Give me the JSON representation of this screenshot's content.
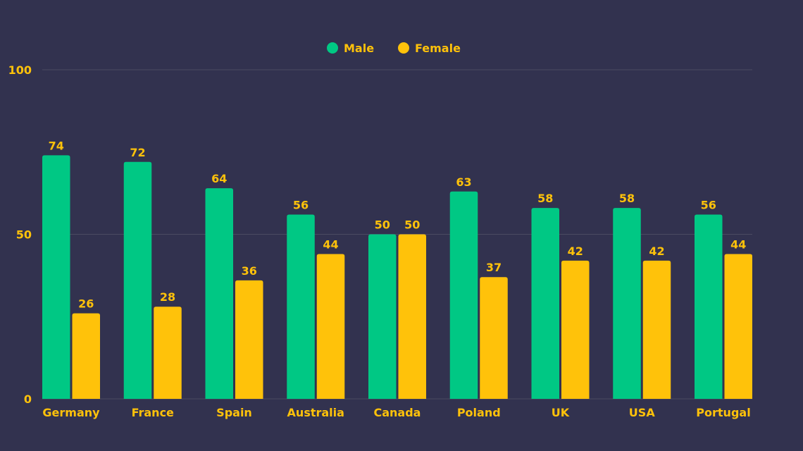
{
  "colors": {
    "background": "#32324f",
    "male": "#00c884",
    "female": "#ffc20a",
    "text": "#ffc20a",
    "grid": "#4a4a62"
  },
  "legend": [
    {
      "name": "Male",
      "color": "#00c884"
    },
    {
      "name": "Female",
      "color": "#ffc20a"
    }
  ],
  "chart_data": {
    "type": "bar",
    "title": "",
    "xlabel": "",
    "ylabel": "",
    "categories": [
      "Germany",
      "France",
      "Spain",
      "Australia",
      "Canada",
      "Poland",
      "UK",
      "USA",
      "Portugal"
    ],
    "series": [
      {
        "name": "Male",
        "color": "#00c884",
        "values": [
          74,
          72,
          64,
          56,
          50,
          63,
          58,
          58,
          56
        ]
      },
      {
        "name": "Female",
        "color": "#ffc20a",
        "values": [
          26,
          28,
          36,
          44,
          50,
          37,
          42,
          42,
          44
        ]
      }
    ],
    "ylim": [
      0,
      100
    ],
    "yticks": [
      0,
      50,
      100
    ],
    "grid": true,
    "legend_position": "top-center"
  }
}
